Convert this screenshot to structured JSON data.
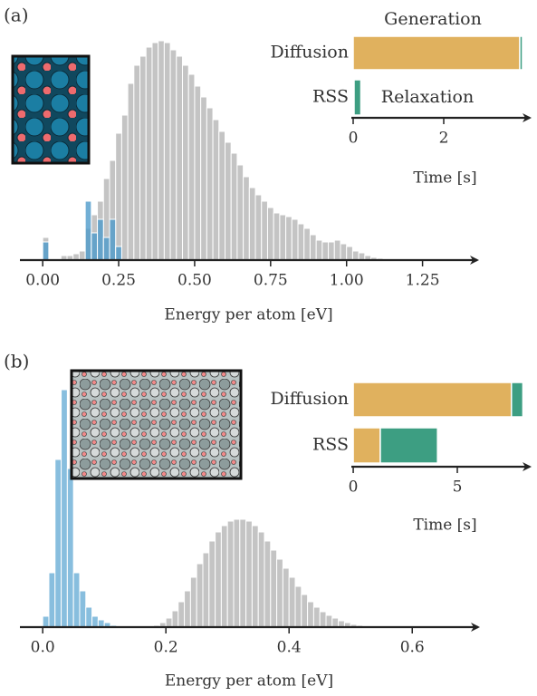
{
  "chart_data": [
    {
      "type": "histogram",
      "panel_label": "(a)",
      "xlabel": "Energy per atom [eV]",
      "bins": [
        0,
        0.02,
        0.04,
        0.06,
        0.08,
        0.1,
        0.12,
        0.14,
        0.16,
        0.18,
        0.2,
        0.22,
        0.24,
        0.26,
        0.28,
        0.3,
        0.32,
        0.34,
        0.36,
        0.38,
        0.4,
        0.42,
        0.44,
        0.46,
        0.48,
        0.5,
        0.52,
        0.54,
        0.56,
        0.58,
        0.6,
        0.62,
        0.64,
        0.66,
        0.68,
        0.7,
        0.72,
        0.74,
        0.76,
        0.78,
        0.8,
        0.82,
        0.84,
        0.86,
        0.88,
        0.9,
        0.92,
        0.94,
        0.96,
        0.98,
        1,
        1.02,
        1.04,
        1.06,
        1.08,
        1.1,
        1.12
      ],
      "series": [
        {
          "color": "#c4c4c4",
          "values": [
            25,
            0,
            0,
            5,
            5,
            7,
            10,
            35,
            50,
            65,
            90,
            110,
            140,
            160,
            195,
            215,
            225,
            235,
            240,
            242,
            240,
            232,
            225,
            215,
            205,
            192,
            180,
            168,
            155,
            142,
            130,
            118,
            105,
            92,
            80,
            72,
            65,
            58,
            52,
            50,
            48,
            45,
            40,
            35,
            28,
            22,
            20,
            20,
            22,
            18,
            15,
            10,
            8,
            5,
            3,
            2
          ]
        },
        {
          "color": "#4f9bcb",
          "values": [
            20,
            0,
            0,
            0,
            0,
            0,
            0,
            65,
            30,
            45,
            25,
            45,
            15,
            0,
            0,
            0,
            0,
            0,
            0,
            0,
            0,
            0,
            0,
            0,
            0,
            0,
            0,
            0,
            0,
            0,
            0,
            0,
            0,
            0,
            0,
            0,
            0,
            0,
            0,
            0,
            0,
            0,
            0,
            0,
            0,
            0,
            0,
            0,
            0,
            0,
            0,
            0,
            0,
            0,
            0,
            0
          ]
        }
      ],
      "xlim": [
        -0.075,
        1.43
      ],
      "xticks": [
        {
          "value": 0,
          "label": "0.00"
        },
        0.25,
        {
          "value": 0.5,
          "label": "0.50"
        },
        0.75,
        {
          "value": 1,
          "label": "1.00"
        },
        1.25
      ]
    },
    {
      "type": "stacked-barh",
      "xlabel": "Time [s]",
      "categories": [
        "Diffusion",
        "RSS"
      ],
      "category_colors": [
        "#2a7db5",
        "#9a9a9a"
      ],
      "series": [
        {
          "name": "Generation",
          "color": "#e0b15e",
          "values": [
            3.68,
            0.02
          ]
        },
        {
          "name": "Relaxation",
          "color": "#3d9e82",
          "values": [
            0.06,
            0.15
          ]
        }
      ],
      "xlim": [
        -0.04,
        3.9
      ],
      "xticks": [
        0,
        2
      ]
    },
    {
      "type": "histogram",
      "panel_label": "(b)",
      "xlabel": "Energy per atom [eV]",
      "bins": [
        0,
        0.01,
        0.02,
        0.03,
        0.04,
        0.05,
        0.06,
        0.07,
        0.08,
        0.09,
        0.1,
        0.11,
        0.12,
        0.13,
        0.14,
        0.15,
        0.16,
        0.17,
        0.18,
        0.19,
        0.2,
        0.21,
        0.22,
        0.23,
        0.24,
        0.25,
        0.26,
        0.27,
        0.28,
        0.29,
        0.3,
        0.31,
        0.32,
        0.33,
        0.34,
        0.35,
        0.36,
        0.37,
        0.38,
        0.39,
        0.4,
        0.41,
        0.42,
        0.43,
        0.44,
        0.45,
        0.46,
        0.47,
        0.48,
        0.49,
        0.5,
        0.51,
        0.52,
        0.53,
        0.54
      ],
      "series": [
        {
          "color": "#c4c4c4",
          "values": [
            0,
            0,
            0,
            0,
            0,
            0,
            0,
            0,
            0,
            0,
            0,
            0,
            0,
            0,
            0,
            0,
            0,
            0,
            2,
            5,
            10,
            18,
            28,
            40,
            55,
            70,
            82,
            95,
            105,
            112,
            117,
            119,
            119,
            117,
            112,
            105,
            95,
            85,
            75,
            65,
            55,
            45,
            36,
            28,
            22,
            17,
            13,
            10,
            7,
            5,
            3,
            2,
            1,
            1
          ]
        },
        {
          "color": "#6aaed6",
          "values": [
            12,
            60,
            185,
            262,
            175,
            60,
            40,
            22,
            12,
            8,
            5,
            2,
            0,
            0,
            0,
            0,
            0,
            0,
            0,
            0,
            0,
            0,
            0,
            0,
            0,
            0,
            0,
            0,
            0,
            0,
            0,
            0,
            0,
            0,
            0,
            0,
            0,
            0,
            0,
            0,
            0,
            0,
            0,
            0,
            0,
            0,
            0,
            0,
            0,
            0,
            0,
            0,
            0,
            0
          ]
        }
      ],
      "xlim": [
        -0.037,
        0.707
      ],
      "xticks": [
        {
          "value": 0,
          "label": "0.0"
        },
        0.2,
        0.4,
        0.6
      ]
    },
    {
      "type": "stacked-barh",
      "xlabel": "Time [s]",
      "categories": [
        "Diffusion",
        "RSS"
      ],
      "category_colors": [
        "#2a7db5",
        "#9a9a9a"
      ],
      "series": [
        {
          "color": "#e0b15e",
          "values": [
            7.6,
            1.3
          ]
        },
        {
          "color": "#3d9e82",
          "values": [
            0.55,
            2.75
          ]
        }
      ],
      "xlim": [
        -0.09,
        8.48
      ],
      "xticks": [
        0,
        5
      ]
    }
  ]
}
